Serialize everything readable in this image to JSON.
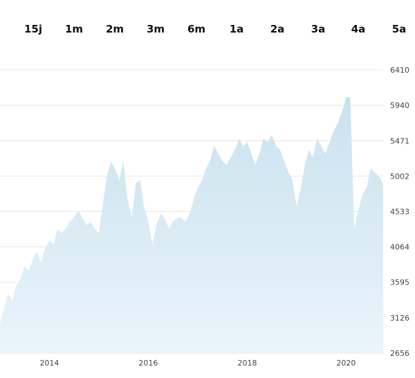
{
  "range_selector": {
    "buttons": [
      "15j",
      "1m",
      "2m",
      "3m",
      "6m",
      "1a",
      "2a",
      "3a",
      "4a",
      "5a"
    ]
  },
  "colors": {
    "area_top": "#c9e2ee",
    "area_bottom": "#eaf4fa",
    "grid": "#e6e6e6"
  },
  "chart_data": {
    "type": "area",
    "title": "",
    "xlabel": "",
    "ylabel": "",
    "grid": true,
    "yaxis_position": "right",
    "ylim": [
      2656,
      6410
    ],
    "xlim": [
      "2013-01-01",
      "2020-10-01"
    ],
    "x_ticks": [
      "2014",
      "2016",
      "2018",
      "2020"
    ],
    "y_ticks": [
      6410,
      5940,
      5471,
      5002,
      4533,
      4064,
      3595,
      3126,
      2656
    ],
    "series": [
      {
        "x": [
          "2013-01-01",
          "2013-02-01",
          "2013-03-01",
          "2013-04-01",
          "2013-05-01",
          "2013-06-01",
          "2013-07-01",
          "2013-08-01",
          "2013-09-01",
          "2013-10-01",
          "2013-11-01",
          "2013-12-01",
          "2014-01-01",
          "2014-02-01",
          "2014-03-01",
          "2014-04-01",
          "2014-05-01",
          "2014-06-01",
          "2014-07-01",
          "2014-08-01",
          "2014-09-01",
          "2014-10-01",
          "2014-11-01",
          "2014-12-01",
          "2015-01-01",
          "2015-02-01",
          "2015-03-01",
          "2015-04-01",
          "2015-05-01",
          "2015-06-01",
          "2015-07-01",
          "2015-08-01",
          "2015-09-01",
          "2015-10-01",
          "2015-11-01",
          "2015-12-01",
          "2016-01-01",
          "2016-02-01",
          "2016-03-01",
          "2016-04-01",
          "2016-05-01",
          "2016-06-01",
          "2016-07-01",
          "2016-08-01",
          "2016-09-01",
          "2016-10-01",
          "2016-11-01",
          "2016-12-01",
          "2017-01-01",
          "2017-02-01",
          "2017-03-01",
          "2017-04-01",
          "2017-05-01",
          "2017-06-01",
          "2017-07-01",
          "2017-08-01",
          "2017-09-01",
          "2017-10-01",
          "2017-11-01",
          "2017-12-01",
          "2018-01-01",
          "2018-02-01",
          "2018-03-01",
          "2018-04-01",
          "2018-05-01",
          "2018-06-01",
          "2018-07-01",
          "2018-08-01",
          "2018-09-01",
          "2018-10-01",
          "2018-11-01",
          "2018-12-01",
          "2019-01-01",
          "2019-02-01",
          "2019-03-01",
          "2019-04-01",
          "2019-05-01",
          "2019-06-01",
          "2019-07-01",
          "2019-08-01",
          "2019-09-01",
          "2019-10-01",
          "2019-11-01",
          "2019-12-01",
          "2020-01-01",
          "2020-02-01",
          "2020-03-01",
          "2020-04-01",
          "2020-05-01",
          "2020-06-01",
          "2020-07-01",
          "2020-08-01",
          "2020-09-01",
          "2020-10-01"
        ],
        "values": [
          3050,
          3250,
          3450,
          3350,
          3550,
          3650,
          3800,
          3750,
          3900,
          4000,
          3850,
          4050,
          4150,
          4100,
          4300,
          4250,
          4300,
          4400,
          4450,
          4550,
          4450,
          4350,
          4400,
          4300,
          4250,
          4650,
          5000,
          5200,
          5100,
          4950,
          5200,
          4700,
          4450,
          4900,
          4950,
          4600,
          4400,
          4100,
          4350,
          4500,
          4450,
          4300,
          4400,
          4450,
          4450,
          4400,
          4500,
          4700,
          4850,
          4950,
          5100,
          5200,
          5400,
          5300,
          5200,
          5150,
          5250,
          5350,
          5500,
          5400,
          5450,
          5300,
          5150,
          5300,
          5500,
          5450,
          5550,
          5400,
          5350,
          5200,
          5050,
          4950,
          4600,
          4850,
          5150,
          5350,
          5250,
          5500,
          5400,
          5300,
          5450,
          5600,
          5700,
          5850,
          6050,
          6050,
          4300,
          4550,
          4750,
          4850,
          5100,
          5050,
          5000,
          4900
        ]
      }
    ]
  }
}
